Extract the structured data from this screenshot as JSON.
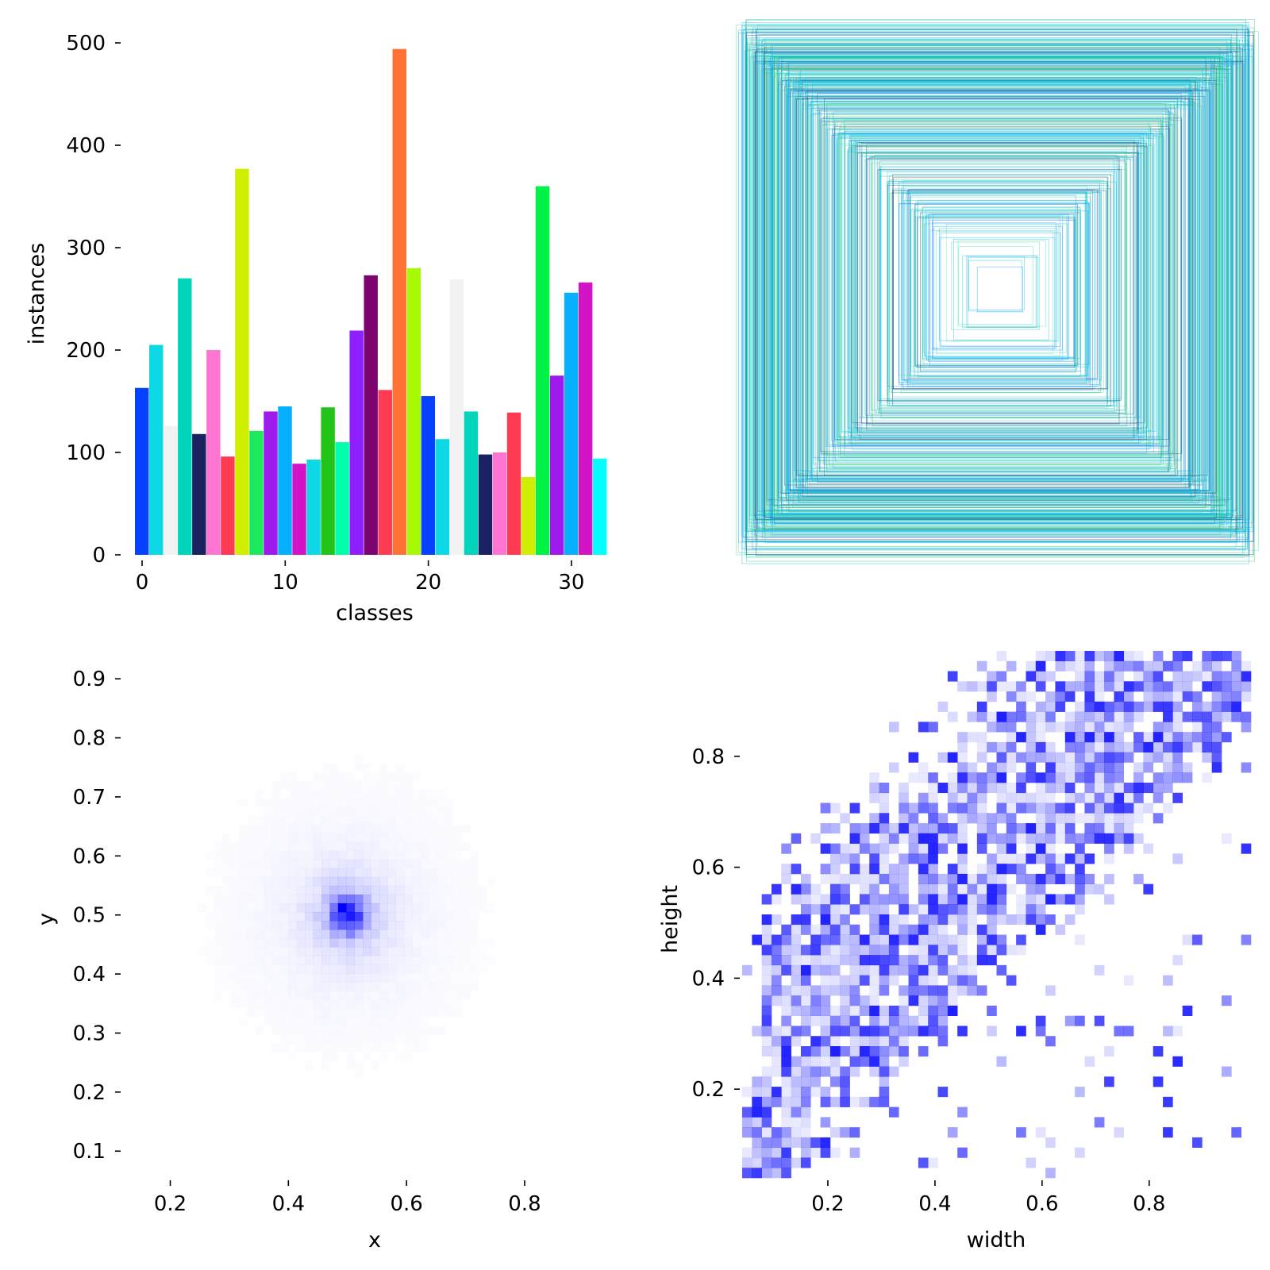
{
  "chart_data": [
    {
      "id": "class-histogram",
      "type": "bar",
      "xlabel": "classes",
      "ylabel": "instances",
      "xlim": [
        -0.5,
        32.5
      ],
      "ylim": [
        0,
        500
      ],
      "xticks": [
        0,
        10,
        20,
        30
      ],
      "yticks": [
        0,
        100,
        200,
        300,
        400,
        500
      ],
      "categories": [
        0,
        1,
        2,
        3,
        4,
        5,
        6,
        7,
        8,
        9,
        10,
        11,
        12,
        13,
        14,
        15,
        16,
        17,
        18,
        19,
        20,
        21,
        22,
        23,
        24,
        25,
        26,
        27,
        28,
        29,
        30,
        31,
        32
      ],
      "values": [
        163,
        205,
        126,
        270,
        118,
        200,
        96,
        377,
        121,
        140,
        145,
        89,
        93,
        144,
        110,
        219,
        273,
        161,
        494,
        280,
        155,
        113,
        269,
        140,
        98,
        100,
        139,
        76,
        360,
        175,
        256,
        266,
        94
      ],
      "colors": [
        "#0541ff",
        "#0cd8e6",
        "#f2f2f2",
        "#00d4bb",
        "#1a2262",
        "#ff75d2",
        "#ff3b54",
        "#d0ef00",
        "#1ce85c",
        "#9d19ec",
        "#06b0ff",
        "#d314c6",
        "#0cd8e6",
        "#22c41a",
        "#00ffaa",
        "#8e1fff",
        "#7d0571",
        "#ff3b54",
        "#ff7236",
        "#a8f906",
        "#0541ff",
        "#0cd8e6",
        "#f2f2f2",
        "#00d4bb",
        "#1a2262",
        "#ff75d2",
        "#ff3b54",
        "#d0ef00",
        "#00f244",
        "#9d19ec",
        "#06b0ff",
        "#d314c6",
        "#00ffff"
      ]
    },
    {
      "id": "box-overlay",
      "type": "other",
      "description_colors": [
        "#17becf",
        "#2ecc71",
        "#1a3a7a",
        "#00c8ff"
      ]
    },
    {
      "id": "xy-heatmap",
      "type": "heatmap",
      "xlabel": "x",
      "ylabel": "y",
      "xlim": [
        0.12,
        0.96
      ],
      "ylim": [
        0.06,
        0.95
      ],
      "xticks": [
        0.2,
        0.4,
        0.6,
        0.8
      ],
      "yticks": [
        0.1,
        0.2,
        0.3,
        0.4,
        0.5,
        0.6,
        0.7,
        0.8,
        0.9
      ],
      "color": "#0000ff",
      "peak": [
        0.5,
        0.5
      ]
    },
    {
      "id": "wh-heatmap",
      "type": "heatmap",
      "xlabel": "width",
      "ylabel": "height",
      "xlim": [
        0.04,
        0.99
      ],
      "ylim": [
        0.04,
        0.99
      ],
      "xticks": [
        0.2,
        0.4,
        0.6,
        0.8
      ],
      "yticks": [
        0.2,
        0.4,
        0.6,
        0.8
      ],
      "color": "#0000ff"
    }
  ]
}
